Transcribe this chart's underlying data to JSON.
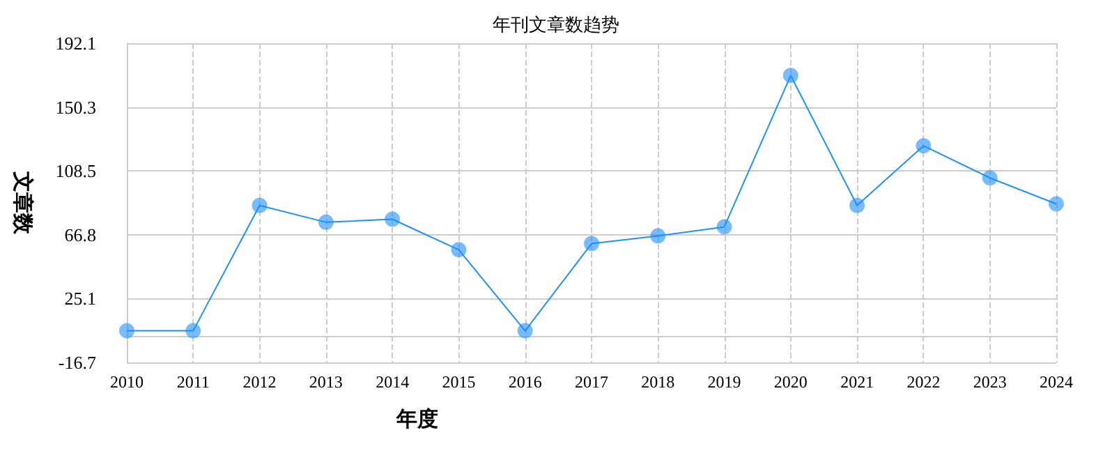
{
  "chart_data": {
    "type": "line",
    "title": "年刊文章数趋势",
    "xlabel": "年度",
    "ylabel": "文章数",
    "categories": [
      "2010",
      "2011",
      "2012",
      "2013",
      "2014",
      "2015",
      "2016",
      "2017",
      "2018",
      "2019",
      "2020",
      "2021",
      "2022",
      "2023",
      "2024"
    ],
    "series": [
      {
        "color": "#1e90ff",
        "values": [
          4,
          4,
          86,
          75,
          77,
          57,
          4,
          61,
          66,
          72,
          171,
          86,
          125,
          104,
          87
        ]
      }
    ],
    "ylim": [
      -16.7,
      192.1
    ],
    "yticks": [
      -16.7,
      25.1,
      66.8,
      108.5,
      150.3,
      192.1
    ],
    "grid": true,
    "marker": "circle",
    "line_style": "solid"
  }
}
